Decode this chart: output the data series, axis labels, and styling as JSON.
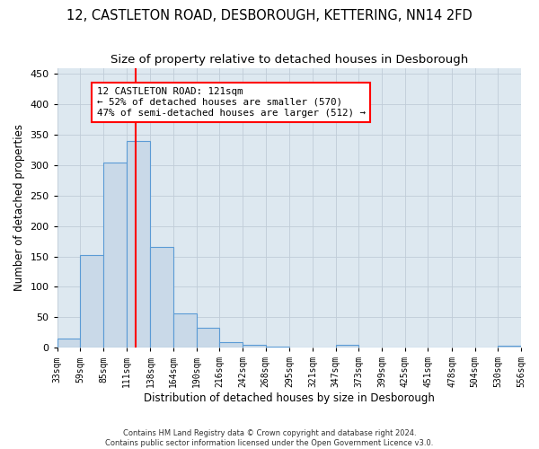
{
  "title_line1": "12, CASTLETON ROAD, DESBOROUGH, KETTERING, NN14 2FD",
  "title_line2": "Size of property relative to detached houses in Desborough",
  "xlabel": "Distribution of detached houses by size in Desborough",
  "ylabel": "Number of detached properties",
  "footer_line1": "Contains HM Land Registry data © Crown copyright and database right 2024.",
  "footer_line2": "Contains public sector information licensed under the Open Government Licence v3.0.",
  "annotation_line1": "12 CASTLETON ROAD: 121sqm",
  "annotation_line2": "← 52% of detached houses are smaller (570)",
  "annotation_line3": "47% of semi-detached houses are larger (512) →",
  "bar_edges": [
    33,
    59,
    85,
    111,
    138,
    164,
    190,
    216,
    242,
    268,
    295,
    321,
    347,
    373,
    399,
    425,
    451,
    478,
    504,
    530,
    556
  ],
  "bar_heights": [
    15,
    153,
    305,
    340,
    165,
    57,
    33,
    9,
    4,
    1,
    0,
    0,
    5,
    0,
    0,
    0,
    0,
    0,
    0,
    3
  ],
  "bar_color": "#c9d9e8",
  "bar_edge_color": "#5b9bd5",
  "red_line_x": 121,
  "ylim": [
    0,
    460
  ],
  "background_color": "#ffffff",
  "axes_bg_color": "#dde8f0",
  "grid_color": "#c0ccd8",
  "title_fontsize": 10.5,
  "subtitle_fontsize": 9.5,
  "tick_label_fontsize": 7,
  "axis_label_fontsize": 8.5
}
